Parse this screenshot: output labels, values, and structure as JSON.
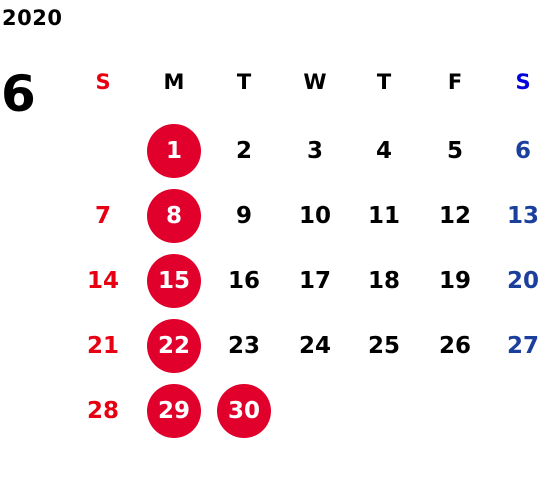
{
  "year": "2020",
  "month": "6",
  "weekdays": [
    "S",
    "M",
    "T",
    "W",
    "T",
    "F",
    "S"
  ],
  "weeks": [
    [
      "",
      "1",
      "2",
      "3",
      "4",
      "5",
      "6"
    ],
    [
      "7",
      "8",
      "9",
      "10",
      "11",
      "12",
      "13"
    ],
    [
      "14",
      "15",
      "16",
      "17",
      "18",
      "19",
      "20"
    ],
    [
      "21",
      "22",
      "23",
      "24",
      "25",
      "26",
      "27"
    ],
    [
      "28",
      "29",
      "30",
      "",
      "",
      "",
      ""
    ]
  ],
  "highlighted_days": [
    "1",
    "8",
    "15",
    "22",
    "29",
    "30"
  ],
  "colors": {
    "sunday": "#e60012",
    "saturday_header": "#0000dd",
    "saturday": "#1b3f9c",
    "highlight": "#e1002b",
    "text": "#000000"
  }
}
